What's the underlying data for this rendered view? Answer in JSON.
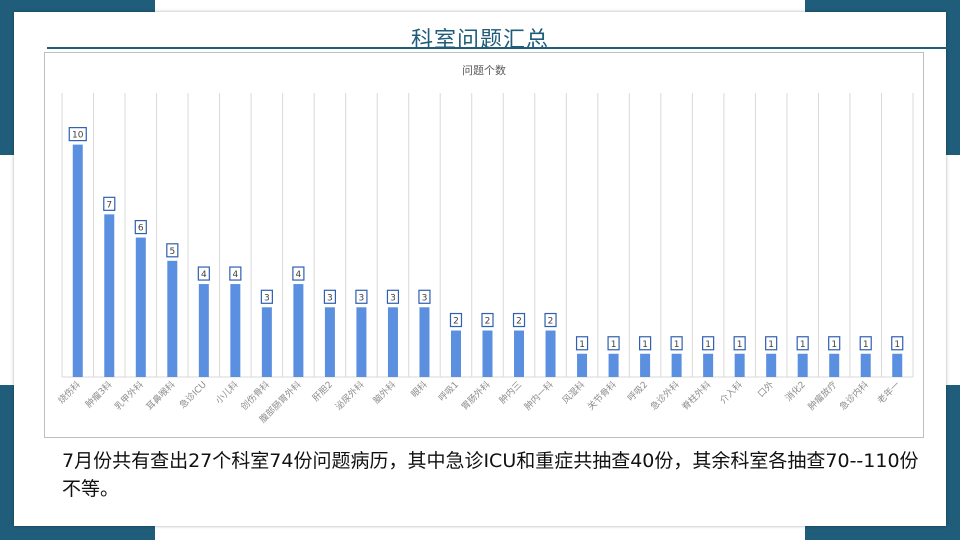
{
  "slide": {
    "title": "科室问题汇总",
    "caption": "7月份共有查出27个科室74份问题病历，其中急诊ICU和重症共抽查40份，其余科室各抽查70--110份不等。"
  },
  "colors": {
    "bar": "#5b8fe0",
    "accent": "#1f5d7a",
    "grid": "#d9d9d9"
  },
  "chart_data": {
    "type": "bar",
    "title": "问题个数",
    "xlabel": "",
    "ylabel": "",
    "ylim": [
      0,
      10.5
    ],
    "grid": true,
    "categories": [
      "烧伤科",
      "肿瘤3科",
      "乳甲外科",
      "耳鼻喉科",
      "急诊ICU",
      "小儿科",
      "创伤骨科",
      "腹部肠胃外科",
      "肝胆2",
      "泌尿外科",
      "脑外科",
      "眼科",
      "呼吸1",
      "胃肠外科",
      "肿内三",
      "肿内一科",
      "风湿科",
      "关节骨科",
      "呼吸2",
      "急诊外科",
      "脊柱外科",
      "介入科",
      "口外",
      "消化2",
      "肿瘤放疗",
      "急诊内科",
      "老年一"
    ],
    "values": [
      10,
      7,
      6,
      5,
      4,
      4,
      3,
      4,
      3,
      3,
      3,
      3,
      2,
      2,
      2,
      2,
      1,
      1,
      1,
      1,
      1,
      1,
      1,
      1,
      1,
      1,
      1
    ]
  }
}
